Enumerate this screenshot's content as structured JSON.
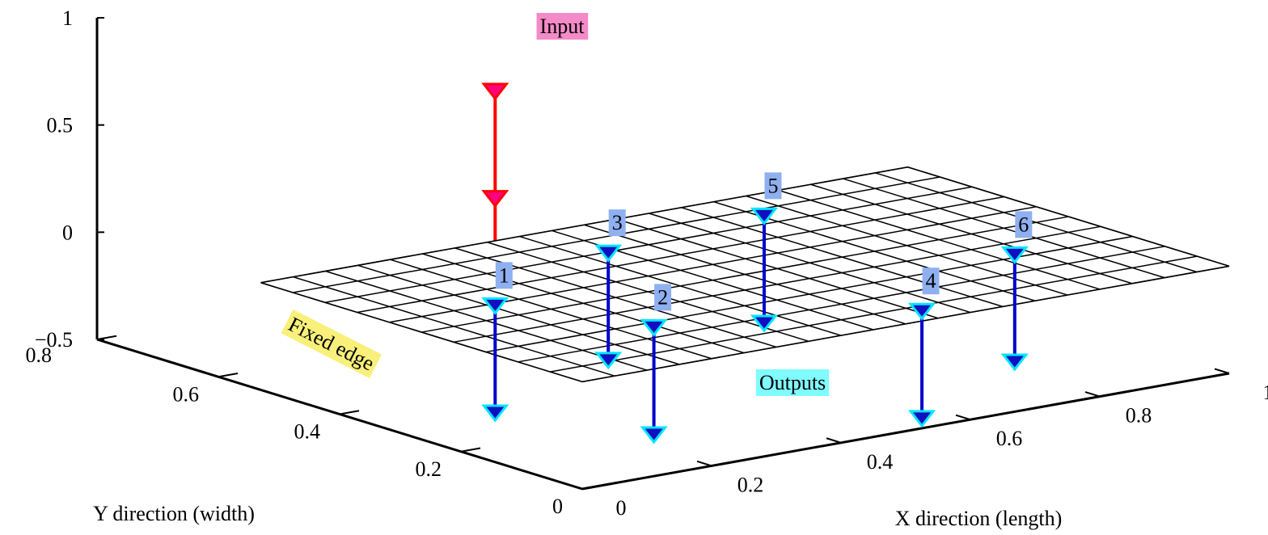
{
  "chart_data": {
    "type": "plate3d",
    "xlabel": "X direction (length)",
    "ylabel": "Y direction (width)",
    "xlim": [
      0,
      1
    ],
    "ylim": [
      0,
      0.8
    ],
    "zlim": [
      -0.5,
      1
    ],
    "xticks": [
      0,
      0.2,
      0.4,
      0.6,
      0.8,
      1
    ],
    "yticks": [
      0,
      0.2,
      0.4,
      0.6,
      0.8
    ],
    "zticks": [
      {
        "value": -0.5,
        "label": "−0.5"
      },
      0,
      0.5,
      1
    ],
    "plate": {
      "x": [
        0,
        1
      ],
      "y": [
        0,
        0.53
      ],
      "z": 0,
      "divisions": [
        20,
        10
      ]
    },
    "fixed_edge_label": "Fixed edge",
    "input": {
      "label": "Input",
      "color": "#ff0000",
      "marker_color": "#ff0080",
      "x": 0.156,
      "y": 0.31,
      "z": [
        1,
        0.5
      ]
    },
    "outputs": {
      "label": "Outputs",
      "color": "#0000cc",
      "marker_color": "#1010c0",
      "edge_color": "#00e5ff",
      "points": [
        {
          "name": "1",
          "x": 0.156,
          "y": 0.31,
          "z": [
            0,
            -0.5
          ]
        },
        {
          "name": "2",
          "x": 0.242,
          "y": 0.14,
          "z": [
            0,
            -0.5
          ]
        },
        {
          "name": "3",
          "x": 0.434,
          "y": 0.42,
          "z": [
            0,
            -0.5
          ]
        },
        {
          "name": "4",
          "x": 0.556,
          "y": 0.033,
          "z": [
            0,
            -0.5
          ]
        },
        {
          "name": "5",
          "x": 0.704,
          "y": 0.451,
          "z": [
            0,
            -0.5
          ]
        },
        {
          "name": "6",
          "x": 0.826,
          "y": 0.168,
          "z": [
            0,
            -0.5
          ]
        }
      ]
    }
  }
}
